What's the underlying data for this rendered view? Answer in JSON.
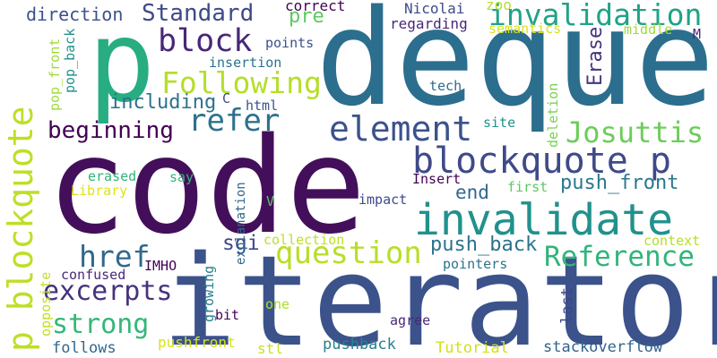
{
  "words": [
    {
      "text": "code",
      "color": "#440f5a",
      "rot": false
    },
    {
      "text": "iterator",
      "color": "#3b528b",
      "rot": false
    },
    {
      "text": "deque",
      "color": "#2c6e8e",
      "rot": false
    },
    {
      "text": "p",
      "color": "#27ad81",
      "rot": false
    },
    {
      "text": "invalidate",
      "color": "#21918c",
      "rot": false
    },
    {
      "text": "p blockquote",
      "color": "#bddf26",
      "rot": true
    },
    {
      "text": "blockquote p",
      "color": "#3e4a89",
      "rot": false
    },
    {
      "text": "invalidation",
      "color": "#20a387",
      "rot": false
    },
    {
      "text": "element",
      "color": "#3b528b",
      "rot": false
    },
    {
      "text": "refer",
      "color": "#2c728e",
      "rot": false
    },
    {
      "text": "Following",
      "color": "#b5de2b",
      "rot": false
    },
    {
      "text": "question",
      "color": "#b8de29",
      "rot": false
    },
    {
      "text": "Reference",
      "color": "#31b57b",
      "rot": false
    },
    {
      "text": "excerpts",
      "color": "#46327e",
      "rot": false
    },
    {
      "text": "strong",
      "color": "#35b779",
      "rot": false
    },
    {
      "text": "href",
      "color": "#31688e",
      "rot": false
    },
    {
      "text": "block",
      "color": "#482878",
      "rot": false
    },
    {
      "text": "Standard",
      "color": "#3e4a89",
      "rot": false
    },
    {
      "text": "Josuttis",
      "color": "#6ccd5a",
      "rot": false
    },
    {
      "text": "beginning",
      "color": "#440154",
      "rot": false
    },
    {
      "text": "including",
      "color": "#2c728e",
      "rot": false
    },
    {
      "text": "push_back",
      "color": "#2c728e",
      "rot": false
    },
    {
      "text": "push_front",
      "color": "#2a788e",
      "rot": false
    },
    {
      "text": "direction",
      "color": "#3b528b",
      "rot": false
    },
    {
      "text": "Erase",
      "color": "#46327e",
      "rot": true
    },
    {
      "text": "end",
      "color": "#31688e",
      "rot": false
    },
    {
      "text": "sgi",
      "color": "#3e4a89",
      "rot": false
    },
    {
      "text": "pre",
      "color": "#5ec962",
      "rot": false
    },
    {
      "text": "zoo",
      "color": "#b5de2b",
      "rot": false
    },
    {
      "text": "Nicolai",
      "color": "#3e4a89",
      "rot": false
    },
    {
      "text": "correct",
      "color": "#440154",
      "rot": false
    },
    {
      "text": "regarding",
      "color": "#482878",
      "rot": false
    },
    {
      "text": "semantics",
      "color": "#d8e219",
      "rot": false
    },
    {
      "text": "middle",
      "color": "#9fda3a",
      "rot": false
    },
    {
      "text": "M",
      "color": "#482878",
      "rot": false
    },
    {
      "text": "points",
      "color": "#3b528b",
      "rot": false
    },
    {
      "text": "insertion",
      "color": "#2c728e",
      "rot": false
    },
    {
      "text": "pop_front",
      "color": "#9fda3a",
      "rot": true
    },
    {
      "text": "pop_back",
      "color": "#21918c",
      "rot": true
    },
    {
      "text": "tech",
      "color": "#31688e",
      "rot": false
    },
    {
      "text": "html",
      "color": "#3b528b",
      "rot": false
    },
    {
      "text": "C",
      "color": "#3e4a89",
      "rot": false
    },
    {
      "text": "site",
      "color": "#21918c",
      "rot": false
    },
    {
      "text": "deletion",
      "color": "#7ad151",
      "rot": true
    },
    {
      "text": "say",
      "color": "#35b779",
      "rot": false
    },
    {
      "text": "Library",
      "color": "#dde318",
      "rot": false
    },
    {
      "text": "erased",
      "color": "#2fb47c",
      "rot": false
    },
    {
      "text": "Insert",
      "color": "#440154",
      "rot": false
    },
    {
      "text": "first",
      "color": "#5ec962",
      "rot": false
    },
    {
      "text": "impact",
      "color": "#3e4a89",
      "rot": false
    },
    {
      "text": "V",
      "color": "#5ec962",
      "rot": false
    },
    {
      "text": "explanation",
      "color": "#31688e",
      "rot": true
    },
    {
      "text": "context",
      "color": "#b5de2b",
      "rot": false
    },
    {
      "text": "collection",
      "color": "#bddf26",
      "rot": false
    },
    {
      "text": "IMHO",
      "color": "#440154",
      "rot": false
    },
    {
      "text": "growing",
      "color": "#26828e",
      "rot": true
    },
    {
      "text": "pointers",
      "color": "#2c728e",
      "rot": false
    },
    {
      "text": "confused",
      "color": "#482878",
      "rot": false
    },
    {
      "text": "one",
      "color": "#addc30",
      "rot": false
    },
    {
      "text": "last",
      "color": "#414487",
      "rot": true
    },
    {
      "text": "opposite",
      "color": "#c2df23",
      "rot": true
    },
    {
      "text": "bit",
      "color": "#440154",
      "rot": false
    },
    {
      "text": "agree",
      "color": "#482878",
      "rot": false
    },
    {
      "text": "stackoverflow",
      "color": "#33638d",
      "rot": false
    },
    {
      "text": "follows",
      "color": "#31688e",
      "rot": false
    },
    {
      "text": "pushfront",
      "color": "#d8e219",
      "rot": false
    },
    {
      "text": "stl",
      "color": "#c8e020",
      "rot": false
    },
    {
      "text": "pushback",
      "color": "#26828e",
      "rot": false
    },
    {
      "text": "Tutorial",
      "color": "#d0e11c",
      "rot": false
    }
  ]
}
